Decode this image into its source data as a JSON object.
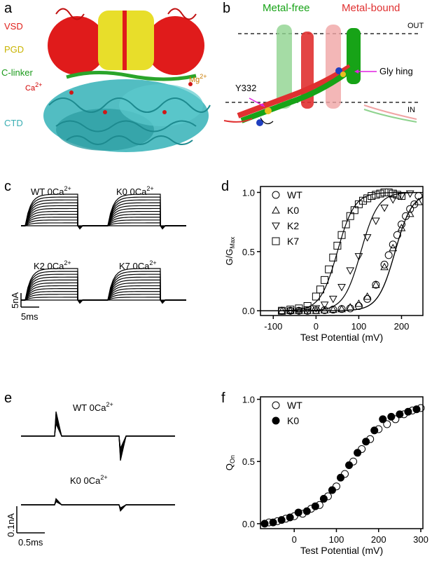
{
  "panels": {
    "a": {
      "label": "a",
      "labels": [
        {
          "text": "VSD",
          "color": "#e0201b"
        },
        {
          "text": "PGD",
          "color": "#c9b400"
        },
        {
          "text": "C-linker",
          "color": "#1a9a1a"
        },
        {
          "text": "Ca",
          "sup": "2+",
          "color": "#d10000"
        },
        {
          "text": "Mg",
          "sup": "2+",
          "color": "#c97a00"
        },
        {
          "text": "CTD",
          "color": "#3aaeb3"
        }
      ],
      "colors": {
        "vsd": "#e01b1b",
        "pgd": "#e8de2a",
        "linker": "#2aa52a",
        "ctd": "#3fb6bb",
        "ion": "#d01818"
      }
    },
    "b": {
      "label": "b",
      "metal_free": "Metal-free",
      "metal_bound": "Metal-bound",
      "out": "OUT",
      "in": "IN",
      "y332": "Y332",
      "gly": "Gly hing",
      "colors": {
        "free": "#17a317",
        "bound": "#e03030",
        "arrow": "#e020e0"
      }
    },
    "c": {
      "label": "c",
      "traces": [
        {
          "name": "WT",
          "cond": "0Ca",
          "sup": "2+"
        },
        {
          "name": "K0",
          "cond": "0Ca",
          "sup": "2+"
        },
        {
          "name": "K2",
          "cond": "0Ca",
          "sup": "2+"
        },
        {
          "name": "K7",
          "cond": "0Ca",
          "sup": "2+"
        }
      ],
      "scale_y": "5nA",
      "scale_x": "5ms"
    },
    "e": {
      "label": "e",
      "traces": [
        {
          "name": "WT",
          "cond": "0Ca",
          "sup": "2+"
        },
        {
          "name": "K0",
          "cond": "0Ca",
          "sup": "2+"
        }
      ],
      "scale_y": "0.1nA",
      "scale_x": "0.5ms"
    }
  },
  "chart_data": [
    {
      "panel": "d",
      "type": "scatter",
      "xlabel": "Test Potential (mV)",
      "ylabel": "G/G",
      "ylabel_sub": "Max",
      "xlim": [
        -130,
        250
      ],
      "ylim": [
        -0.04,
        1.05
      ],
      "xticks": [
        -100,
        0,
        100,
        200
      ],
      "yticks": [
        0.0,
        0.5,
        1.0
      ],
      "xtick_labels": [
        "-100",
        "0",
        "100",
        "200"
      ],
      "ytick_labels": [
        "0.0",
        "0.5",
        "1.0"
      ],
      "legend_position": "top-left",
      "series": [
        {
          "name": "WT",
          "marker": "circle",
          "vhalf": 185,
          "slope": 20,
          "x": [
            -80,
            -60,
            -40,
            -20,
            0,
            20,
            40,
            60,
            80,
            100,
            120,
            140,
            160,
            170,
            180,
            190,
            200,
            210,
            220,
            230,
            240
          ],
          "y": [
            0,
            0,
            0,
            0,
            0.005,
            0.005,
            0.01,
            0.015,
            0.02,
            0.04,
            0.1,
            0.22,
            0.39,
            0.47,
            0.56,
            0.64,
            0.73,
            0.8,
            0.86,
            0.9,
            0.97
          ]
        },
        {
          "name": "K0",
          "marker": "triangle-up",
          "vhalf": 185,
          "slope": 20,
          "x": [
            -80,
            -60,
            -40,
            -20,
            0,
            20,
            40,
            60,
            80,
            100,
            120,
            140,
            160,
            180,
            200,
            220,
            240
          ],
          "y": [
            0,
            0,
            0,
            0,
            0,
            0.005,
            0.01,
            0.015,
            0.03,
            0.06,
            0.12,
            0.22,
            0.37,
            0.53,
            0.7,
            0.82,
            0.92
          ]
        },
        {
          "name": "K2",
          "marker": "triangle-down",
          "vhalf": 105,
          "slope": 20,
          "x": [
            -60,
            -40,
            -20,
            0,
            20,
            40,
            60,
            80,
            100,
            120,
            140,
            160,
            180,
            200,
            220
          ],
          "y": [
            0,
            0,
            0.01,
            0.02,
            0.05,
            0.1,
            0.2,
            0.34,
            0.46,
            0.62,
            0.76,
            0.87,
            0.94,
            0.97,
            0.99
          ]
        },
        {
          "name": "K7",
          "marker": "square",
          "vhalf": 50,
          "slope": 20,
          "x": [
            -80,
            -60,
            -40,
            -20,
            0,
            10,
            20,
            30,
            40,
            50,
            60,
            70,
            80,
            90,
            100,
            110,
            120,
            130,
            140,
            150,
            160,
            170,
            180,
            190,
            200
          ],
          "y": [
            0,
            0.01,
            0.02,
            0.04,
            0.12,
            0.18,
            0.26,
            0.35,
            0.45,
            0.55,
            0.64,
            0.73,
            0.8,
            0.85,
            0.9,
            0.93,
            0.95,
            0.97,
            0.98,
            0.99,
            1.0,
            1.0,
            0.99,
            0.98,
            0.97
          ]
        }
      ]
    },
    {
      "panel": "f",
      "type": "scatter",
      "xlabel": "Test Potential (mV)",
      "ylabel": "Q",
      "ylabel_sub": "On",
      "xlim": [
        -80,
        305
      ],
      "ylim": [
        -0.04,
        1.02
      ],
      "xticks": [
        0,
        100,
        200,
        300
      ],
      "yticks": [
        0.0,
        0.5,
        1.0
      ],
      "xtick_labels": [
        "0",
        "100",
        "200",
        "300"
      ],
      "ytick_labels": [
        "0.0",
        "0.5",
        "1.0"
      ],
      "legend_position": "top-left",
      "series": [
        {
          "name": "WT",
          "marker": "circle-open",
          "x": [
            -60,
            -40,
            -20,
            0,
            20,
            40,
            60,
            80,
            100,
            120,
            140,
            160,
            180,
            200,
            220,
            240,
            260,
            280,
            300
          ],
          "y": [
            0.01,
            0.02,
            0.04,
            0.06,
            0.08,
            0.12,
            0.15,
            0.22,
            0.3,
            0.4,
            0.5,
            0.6,
            0.68,
            0.76,
            0.8,
            0.84,
            0.88,
            0.91,
            0.93
          ]
        },
        {
          "name": "K0",
          "marker": "circle-filled",
          "x": [
            -70,
            -50,
            -30,
            -10,
            10,
            30,
            50,
            70,
            90,
            110,
            130,
            150,
            170,
            190,
            210,
            230,
            250,
            270,
            290
          ],
          "y": [
            0.0,
            0.01,
            0.03,
            0.05,
            0.09,
            0.1,
            0.14,
            0.2,
            0.27,
            0.37,
            0.47,
            0.57,
            0.66,
            0.75,
            0.84,
            0.86,
            0.88,
            0.9,
            0.92
          ]
        }
      ]
    }
  ]
}
